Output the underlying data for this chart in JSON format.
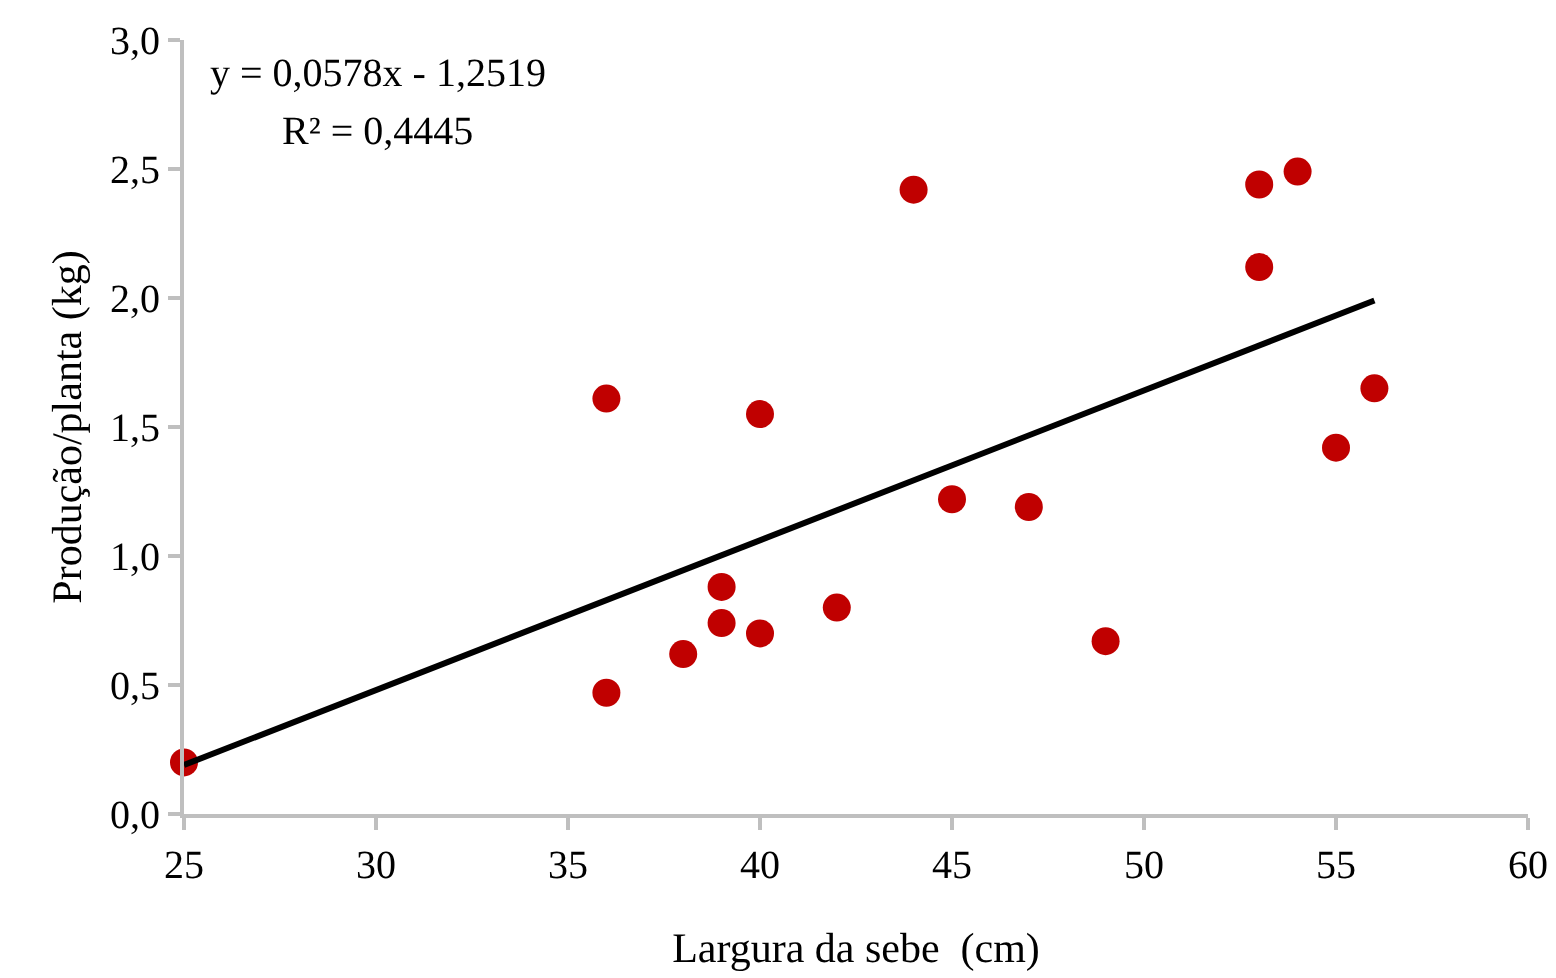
{
  "chart_data": {
    "type": "scatter",
    "xlabel": "Largura da sebe  (cm)",
    "ylabel": "Produção/planta (kg)",
    "annotations": [
      "y = 0,0578x - 1,2519",
      "R² = 0,4445"
    ],
    "xlim": [
      25,
      60
    ],
    "xticks": [
      25,
      30,
      35,
      40,
      45,
      50,
      55,
      60
    ],
    "ylim": [
      0,
      3
    ],
    "yticks": [
      {
        "value": 0,
        "label": "0,0"
      },
      {
        "value": 0.5,
        "label": "0,5"
      },
      {
        "value": 1,
        "label": "1,0"
      },
      {
        "value": 1.5,
        "label": "1,5"
      },
      {
        "value": 2,
        "label": "2,0"
      },
      {
        "value": 2.5,
        "label": "2,5"
      },
      {
        "value": 3,
        "label": "3,0"
      }
    ],
    "grid": false,
    "marker": "circle",
    "series": [
      {
        "color": "#c00000",
        "x": [
          25,
          36,
          36,
          38,
          39,
          39,
          40,
          40,
          42,
          44,
          45,
          47,
          49,
          53,
          53,
          54,
          55,
          56
        ],
        "values": [
          0.2,
          1.61,
          0.47,
          0.62,
          0.88,
          0.74,
          1.55,
          0.7,
          0.8,
          2.42,
          1.22,
          1.19,
          0.67,
          2.44,
          2.12,
          2.49,
          1.42,
          1.65
        ]
      },
      {
        "type": "line",
        "color": "#000000",
        "x": [
          25,
          56
        ],
        "values": [
          0.19,
          1.99
        ],
        "line_style": "solid",
        "marker": "none"
      }
    ]
  }
}
